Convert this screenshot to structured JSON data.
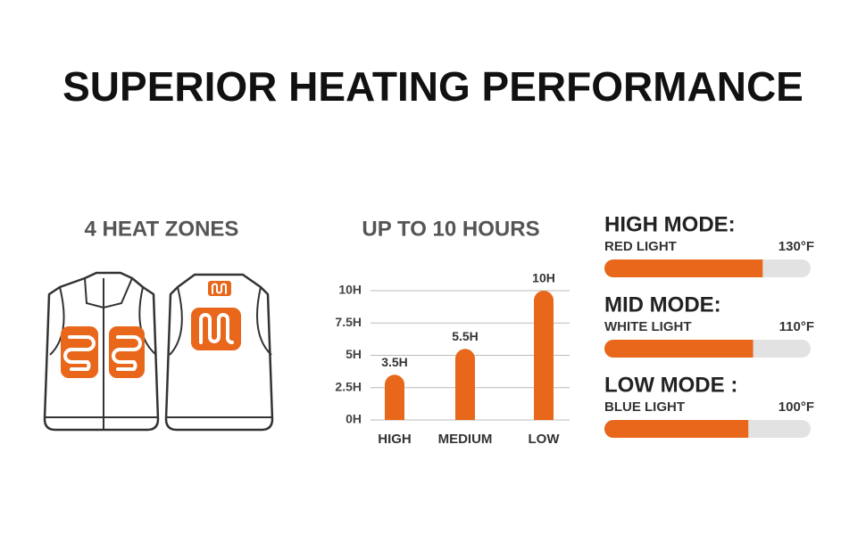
{
  "title": "SUPERIOR HEATING PERFORMANCE",
  "zones": {
    "title": "4 HEAT ZONES"
  },
  "chart_data": [
    {
      "type": "bar",
      "title": "UP TO 10 HOURS",
      "categories": [
        "HIGH",
        "MEDIUM",
        "LOW"
      ],
      "values": [
        3.5,
        5.5,
        10
      ],
      "value_labels": [
        "3.5H",
        "5.5H",
        "10H"
      ],
      "color": "#e8671b",
      "ylim": [
        0,
        10
      ],
      "yticks": [
        {
          "value": 0,
          "label": "0H"
        },
        {
          "value": 2.5,
          "label": "2.5H"
        },
        {
          "value": 5,
          "label": "5H"
        },
        {
          "value": 7.5,
          "label": "7.5H"
        },
        {
          "value": 10,
          "label": "10H"
        }
      ],
      "grid": true
    },
    {
      "type": "progress",
      "categories": [
        "HIGH MODE:",
        "MID MODE:",
        "LOW MODE :"
      ],
      "sublabels": [
        "RED LIGHT",
        "WHITE LIGHT",
        "BLUE LIGHT"
      ],
      "values": [
        130,
        110,
        100
      ],
      "value_labels": [
        "130°F",
        "110°F",
        "100°F"
      ],
      "xlim": [
        -200,
        230
      ],
      "color": "#e8671b",
      "track_color": "#e2e2e2"
    }
  ]
}
